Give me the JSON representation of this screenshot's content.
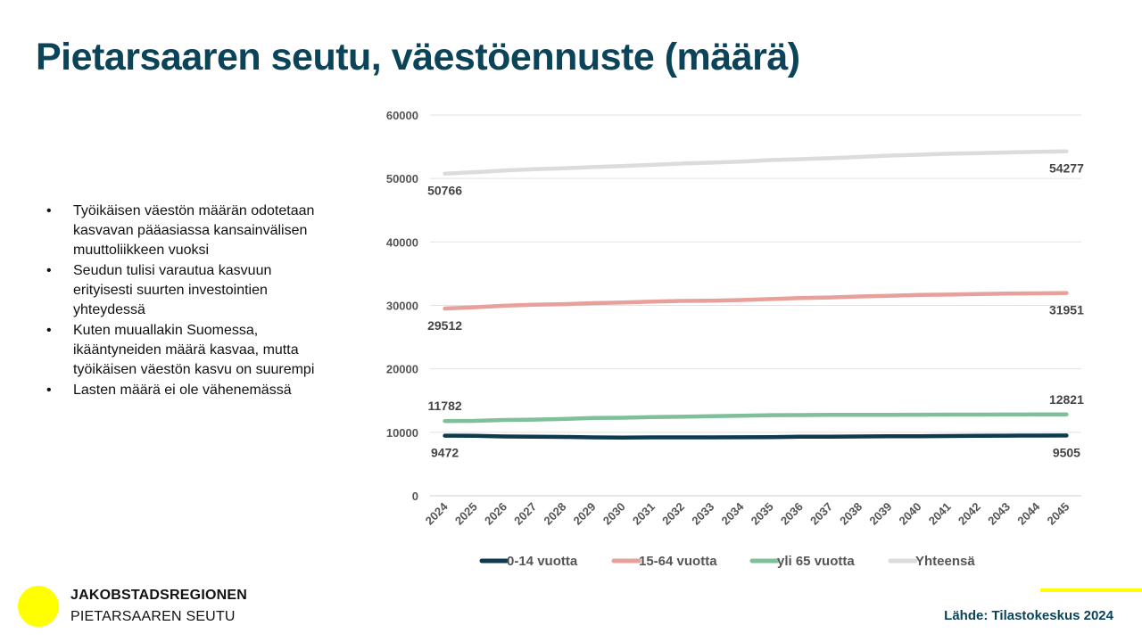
{
  "title": "Pietarsaaren seutu, väestöennuste (määrä)",
  "bullets": [
    "Työikäisen väestön määrän odotetaan kasvavan pääasiassa kansainvälisen muuttoliikkeen vuoksi",
    "Seudun tulisi varautua kasvuun erityisesti suurten investointien yhteydessä",
    "Kuten muuallakin Suomessa, ikääntyneiden määrä kasvaa, mutta työikäisen väestön kasvu on suurempi",
    "Lasten määrä ei ole vähenemässä"
  ],
  "bullet_symbol": "•",
  "brand": {
    "line1": "JAKOBSTADSREGIONEN",
    "line2": "PIETARSAAREN SEUTU",
    "accent_color": "#ffff00"
  },
  "source": "Lähde: Tilastokeskus 2024",
  "chart_data": {
    "type": "line",
    "title": "",
    "xlabel": "",
    "ylabel": "",
    "ylim": [
      0,
      60000
    ],
    "yticks": [
      0,
      10000,
      20000,
      30000,
      40000,
      50000,
      60000
    ],
    "grid": true,
    "legend_position": "bottom",
    "categories": [
      "2024",
      "2025",
      "2026",
      "2027",
      "2028",
      "2029",
      "2030",
      "2031",
      "2032",
      "2033",
      "2034",
      "2035",
      "2036",
      "2037",
      "2038",
      "2039",
      "2040",
      "2041",
      "2042",
      "2043",
      "2044",
      "2045"
    ],
    "series": [
      {
        "name": "0-14 vuotta",
        "color": "#0e3a4d",
        "values": [
          9472,
          9450,
          9350,
          9300,
          9280,
          9200,
          9180,
          9200,
          9210,
          9200,
          9220,
          9250,
          9300,
          9320,
          9350,
          9370,
          9380,
          9420,
          9450,
          9470,
          9490,
          9505
        ],
        "labels": {
          "first": "9472",
          "last": "9505",
          "position": "below"
        }
      },
      {
        "name": "15-64 vuotta",
        "color": "#e8a09a",
        "values": [
          29512,
          29700,
          29950,
          30100,
          30200,
          30350,
          30450,
          30600,
          30700,
          30750,
          30850,
          31000,
          31150,
          31250,
          31400,
          31500,
          31650,
          31700,
          31800,
          31850,
          31900,
          31951
        ],
        "labels": {
          "first": "29512",
          "last": "31951",
          "position": "below"
        }
      },
      {
        "name": "yli 65 vuotta",
        "color": "#7fbf9a",
        "values": [
          11782,
          11800,
          11950,
          12000,
          12100,
          12250,
          12300,
          12400,
          12450,
          12550,
          12600,
          12700,
          12720,
          12740,
          12750,
          12760,
          12770,
          12780,
          12790,
          12800,
          12810,
          12821
        ],
        "labels": {
          "first": "11782",
          "last": "12821",
          "position": "above"
        }
      },
      {
        "name": "Yhteensä",
        "color": "#dcdcdc",
        "values": [
          50766,
          51000,
          51250,
          51450,
          51600,
          51800,
          51950,
          52150,
          52350,
          52500,
          52650,
          52900,
          53050,
          53200,
          53400,
          53600,
          53750,
          53900,
          54000,
          54100,
          54200,
          54277
        ],
        "labels": {
          "first": "50766",
          "last": "54277",
          "position": "below"
        }
      }
    ]
  }
}
